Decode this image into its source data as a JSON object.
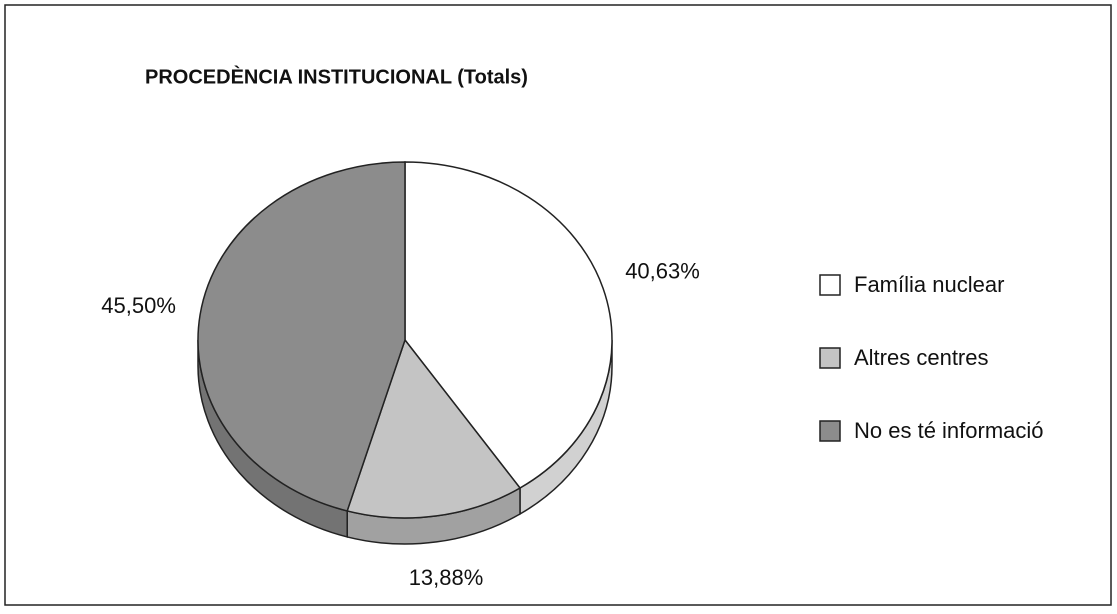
{
  "chart_data": {
    "type": "pie",
    "title": "PROCEDÈNCIA INSTITUCIONAL (Totals)",
    "categories": [
      "Família nuclear",
      "Altres centres",
      "No es té informació"
    ],
    "values": [
      40.63,
      13.88,
      45.5
    ],
    "value_labels": [
      "40,63%",
      "13,88%",
      "45,50%"
    ],
    "colors": [
      "#ffffff",
      "#c4c4c4",
      "#8c8c8c"
    ],
    "legend": "right"
  }
}
